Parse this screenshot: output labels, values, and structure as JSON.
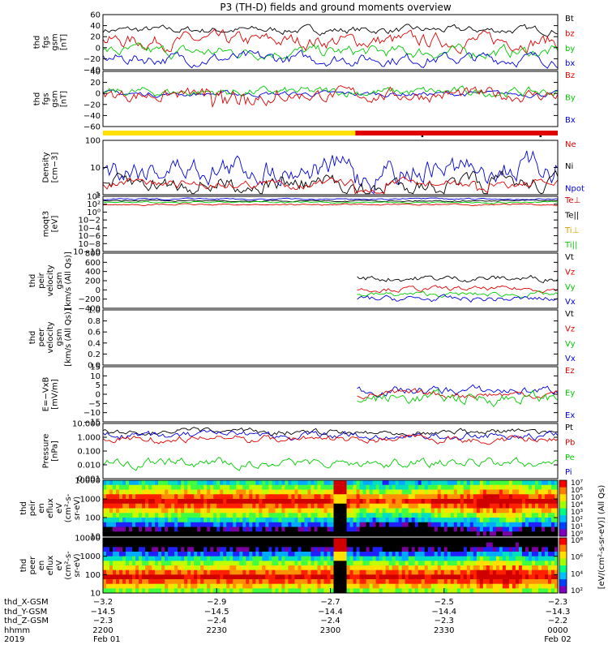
{
  "title": "P3 (TH-D) fields and ground moments overview",
  "colors": {
    "black": "#000000",
    "red": "#e00000",
    "green": "#00cc00",
    "blue": "#0000e0",
    "yellow": "#ffe000"
  },
  "chart_data": [
    {
      "id": "p1",
      "type": "line",
      "ylabel": [
        "thd",
        "fgs",
        "gsm",
        "[nT]"
      ],
      "yticks": [
        "60",
        "40",
        "20",
        "0",
        "−20",
        "−40"
      ],
      "ylim": [
        -40,
        60
      ],
      "legend": [
        {
          "text": "Bt",
          "color": "#000000"
        },
        {
          "text": "bz",
          "color": "#e00000"
        },
        {
          "text": "by",
          "color": "#00cc00"
        },
        {
          "text": "bx",
          "color": "#0000e0"
        }
      ],
      "series": [
        {
          "color": "#000000",
          "base": 32,
          "noise": 5
        },
        {
          "color": "#e00000",
          "base": 12,
          "noise": 10
        },
        {
          "color": "#00cc00",
          "base": -8,
          "noise": 8
        },
        {
          "color": "#0000e0",
          "base": -20,
          "noise": 8
        }
      ]
    },
    {
      "id": "p2",
      "type": "line",
      "ylabel": [
        "thd",
        "fgs",
        "gsm",
        "[nT]"
      ],
      "yticks": [
        "40",
        "20",
        "0",
        "−20",
        "−40",
        "−60"
      ],
      "ylim": [
        -70,
        45
      ],
      "legend": [
        {
          "text": "Bz",
          "color": "#e00000"
        },
        {
          "text": "By",
          "color": "#00cc00"
        },
        {
          "text": "Bx",
          "color": "#0000e0"
        }
      ],
      "series": [
        {
          "color": "#0000e0",
          "base": -2,
          "noise": 4
        },
        {
          "color": "#00cc00",
          "base": 2,
          "noise": 7
        },
        {
          "color": "#e00000",
          "base": -4,
          "noise": 10
        }
      ]
    },
    {
      "id": "p3",
      "type": "line",
      "scale": "log",
      "ylabel": [
        "Density",
        "[cm−3]"
      ],
      "yticks": [
        "100",
        "10",
        "1"
      ],
      "legend": [
        {
          "text": "Ne",
          "color": "#e00000"
        },
        {
          "text": "Ni",
          "color": "#000000"
        },
        {
          "text": "Npot",
          "color": "#0000e0"
        }
      ],
      "series": [
        {
          "color": "#0000e0",
          "base": 0.5,
          "noise": 0.18
        },
        {
          "color": "#000000",
          "base": 0.8,
          "noise": 0.12
        },
        {
          "color": "#e00000",
          "base": 0.8,
          "noise": 0.06
        }
      ]
    },
    {
      "id": "p4",
      "type": "line",
      "scale": "log",
      "ylabel": [
        "moqt3",
        "[eV]"
      ],
      "yticks": [
        "10⁴",
        "10²",
        "10⁰",
        "10−2",
        "10−4",
        "10−6",
        "10−8",
        "10−10"
      ],
      "legend": [
        {
          "text": "Te⊥",
          "color": "#e00000"
        },
        {
          "text": "Te||",
          "color": "#000000"
        },
        {
          "text": "Ti⊥",
          "color": "#e0a000"
        },
        {
          "text": "Ti||",
          "color": "#00cc00"
        }
      ],
      "series": [
        {
          "color": "#000000",
          "base": 0.08,
          "noise": 0.01
        },
        {
          "color": "#00cc00",
          "base": 0.11,
          "noise": 0.01
        },
        {
          "color": "#e00000",
          "base": 0.15,
          "noise": 0.01
        },
        {
          "color": "#0000e0",
          "base": 0.05,
          "noise": 0.01
        }
      ]
    },
    {
      "id": "p5",
      "type": "line",
      "ylabel": [
        "thd",
        "peir",
        "velocity",
        "gsm",
        "[km/s (All Qs)]"
      ],
      "yticks": [
        "800",
        "600",
        "400",
        "200",
        "0",
        "−200",
        "−400"
      ],
      "ylim": [
        -400,
        800
      ],
      "legend": [
        {
          "text": "Vt",
          "color": "#000000"
        },
        {
          "text": "Vz",
          "color": "#e00000"
        },
        {
          "text": "Vy",
          "color": "#00cc00"
        },
        {
          "text": "Vx",
          "color": "#0000e0"
        }
      ],
      "series": [
        {
          "color": "#000000",
          "base": 250,
          "noise": 50,
          "start": 0.555
        },
        {
          "color": "#e00000",
          "base": 20,
          "noise": 40,
          "start": 0.555
        },
        {
          "color": "#00cc00",
          "base": -100,
          "noise": 40,
          "start": 0.555
        },
        {
          "color": "#0000e0",
          "base": -200,
          "noise": 50,
          "start": 0.555
        }
      ]
    },
    {
      "id": "p6",
      "type": "line",
      "ylabel": [
        "thd",
        "peer",
        "velocity",
        "gsm",
        "[km/s (All Qs)]"
      ],
      "yticks": [
        "1.0",
        "0.8",
        "0.6",
        "0.4",
        "0.2",
        "0.0"
      ],
      "ylim": [
        0,
        1
      ],
      "legend": [
        {
          "text": "Vt",
          "color": "#000000"
        },
        {
          "text": "Vz",
          "color": "#e00000"
        },
        {
          "text": "Vy",
          "color": "#00cc00"
        },
        {
          "text": "Vx",
          "color": "#0000e0"
        }
      ],
      "series": []
    },
    {
      "id": "p7",
      "type": "line",
      "ylabel": [
        "E=−VxB",
        "[mV/m]"
      ],
      "yticks": [
        "15",
        "10",
        "5",
        "0",
        "−5",
        "−10",
        "−15"
      ],
      "ylim": [
        -15,
        15
      ],
      "legend": [
        {
          "text": "Ez",
          "color": "#e00000"
        },
        {
          "text": "Ey",
          "color": "#00cc00"
        },
        {
          "text": "Ex",
          "color": "#0000e0"
        }
      ],
      "series": [
        {
          "color": "#0000e0",
          "base": 2,
          "noise": 1.8,
          "start": 0.555
        },
        {
          "color": "#e00000",
          "base": 0,
          "noise": 1.5,
          "start": 0.555
        },
        {
          "color": "#00cc00",
          "base": -2,
          "noise": 2.5,
          "start": 0.555
        }
      ]
    },
    {
      "id": "p8",
      "type": "line",
      "scale": "log",
      "ylabel": [
        "Pressure",
        "[nPa]"
      ],
      "yticks": [
        "10.000",
        "1.000",
        "0.100",
        "0.010",
        "0.001"
      ],
      "legend": [
        {
          "text": "Pt",
          "color": "#000000"
        },
        {
          "text": "Pb",
          "color": "#e00000"
        },
        {
          "text": "Pe",
          "color": "#00cc00"
        },
        {
          "text": "Pi",
          "color": "#0000e0"
        }
      ],
      "series": [
        {
          "color": "#000000",
          "base": 0.15,
          "noise": 0.04
        },
        {
          "color": "#0000e0",
          "base": 0.22,
          "noise": 0.05
        },
        {
          "color": "#e00000",
          "base": 0.28,
          "noise": 0.05
        },
        {
          "color": "#00cc00",
          "base": 0.72,
          "noise": 0.06
        }
      ]
    },
    {
      "id": "p9",
      "type": "heatmap",
      "ylabel": [
        "thd",
        "peir",
        "en",
        "eflux",
        "eV",
        "(cm²-s-",
        "sr-eV)"
      ],
      "yticks": [
        "10000",
        "1000",
        "100",
        "10"
      ],
      "colorbar": [
        "10⁷",
        "10⁶",
        "10⁵",
        "10⁴",
        "10³",
        "10²",
        "10¹",
        "10⁰"
      ]
    },
    {
      "id": "p10",
      "type": "heatmap",
      "ylabel": [
        "thd",
        "peer",
        "en",
        "eflux",
        "eV",
        "(cm²-s-",
        "sr-eV)"
      ],
      "yticks": [
        "10000",
        "1000",
        "100",
        "10"
      ],
      "colorbar": [
        "10⁸",
        "10⁶",
        "10⁴",
        "10²"
      ]
    }
  ],
  "colorbar_label": "[eV/(cm²-s-sr-eV)] (All Qs)",
  "xaxis": {
    "row_labels": [
      "thd_X-GSM",
      "thd_Y-GSM",
      "thd_Z-GSM",
      "hhmm",
      "2019"
    ],
    "ticks": [
      {
        "rows": [
          "−3.2",
          "−14.5",
          "−2.3",
          "2200",
          "Feb 01"
        ]
      },
      {
        "rows": [
          "−2.9",
          "−14.5",
          "−2.4",
          "2230",
          ""
        ]
      },
      {
        "rows": [
          "−2.7",
          "−14.4",
          "−2.4",
          "2300",
          ""
        ]
      },
      {
        "rows": [
          "−2.5",
          "−14.4",
          "−2.3",
          "2330",
          ""
        ]
      },
      {
        "rows": [
          "−2.3",
          "−14.3",
          "−2.2",
          "0000",
          "Feb 02"
        ]
      }
    ]
  }
}
